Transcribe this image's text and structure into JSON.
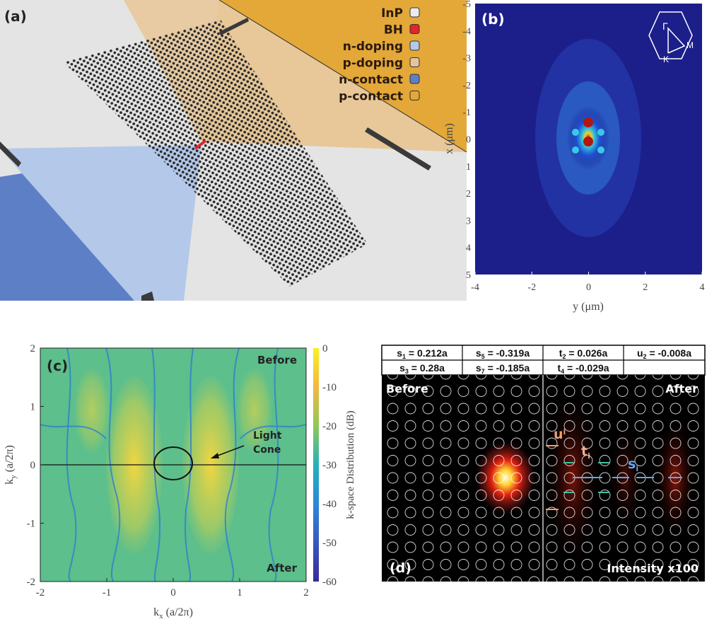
{
  "panel_a": {
    "label": "(a)",
    "legend": [
      {
        "name": "InP",
        "color": "#ececec"
      },
      {
        "name": "BH",
        "color": "#e0262a"
      },
      {
        "name": "n-doping",
        "color": "#b4c8ea"
      },
      {
        "name": "p-doping",
        "color": "#e6c49a"
      },
      {
        "name": "n-contact",
        "color": "#5d7fc6"
      },
      {
        "name": "p-contact",
        "color": "#e3a838"
      }
    ]
  },
  "panel_b": {
    "label": "(b)",
    "xlabel": "y (μm)",
    "ylabel": "x (μm)",
    "xticks": [
      "-4",
      "-2",
      "0",
      "2",
      "4"
    ],
    "yticks": [
      "-5",
      "-4",
      "-3",
      "-2",
      "-1",
      "0",
      "1",
      "2",
      "3",
      "4",
      "5"
    ],
    "xlim": [
      -4,
      4
    ],
    "ylim": [
      -5,
      5
    ],
    "inset_labels": {
      "gamma": "Γ",
      "k": "K",
      "m": "M"
    }
  },
  "panel_c": {
    "label": "(c)",
    "xlabel": "k",
    "xlabel_sub": "x",
    "xlabel_unit": " (a/2π)",
    "ylabel": "k",
    "ylabel_sub": "y",
    "ylabel_unit": " (a/2π)",
    "xticks": [
      "-2",
      "-1",
      "0",
      "1",
      "2"
    ],
    "yticks": [
      "2",
      "1",
      "0",
      "-1",
      "-2"
    ],
    "before": "Before",
    "after": "After",
    "annotation": [
      "Light",
      "Cone"
    ],
    "colorbar_label": "k-space Distribution (dB)",
    "colorbar_ticks": [
      "0",
      "-10",
      "-20",
      "-30",
      "-40",
      "-50",
      "-60"
    ],
    "colorbar_range": [
      -60,
      0
    ]
  },
  "panel_d": {
    "label": "(d)",
    "before": "Before",
    "after": "After",
    "intensity": "Intensity x100",
    "arrow_labels": {
      "u": "u",
      "t": "t",
      "s": "s",
      "sub": "i"
    },
    "table": [
      [
        [
          "s",
          "1",
          " = 0.212a"
        ],
        [
          "s",
          "5",
          " = -0.319a"
        ],
        [
          "t",
          "2",
          " = 0.026a"
        ],
        [
          "u",
          "2",
          " = -0.008a"
        ]
      ],
      [
        [
          "s",
          "3",
          " = 0.28a"
        ],
        [
          "s",
          "7",
          " = -0.185a"
        ],
        [
          "t",
          "4",
          " = -0.029a"
        ],
        [
          "",
          "",
          ""
        ]
      ]
    ]
  }
}
